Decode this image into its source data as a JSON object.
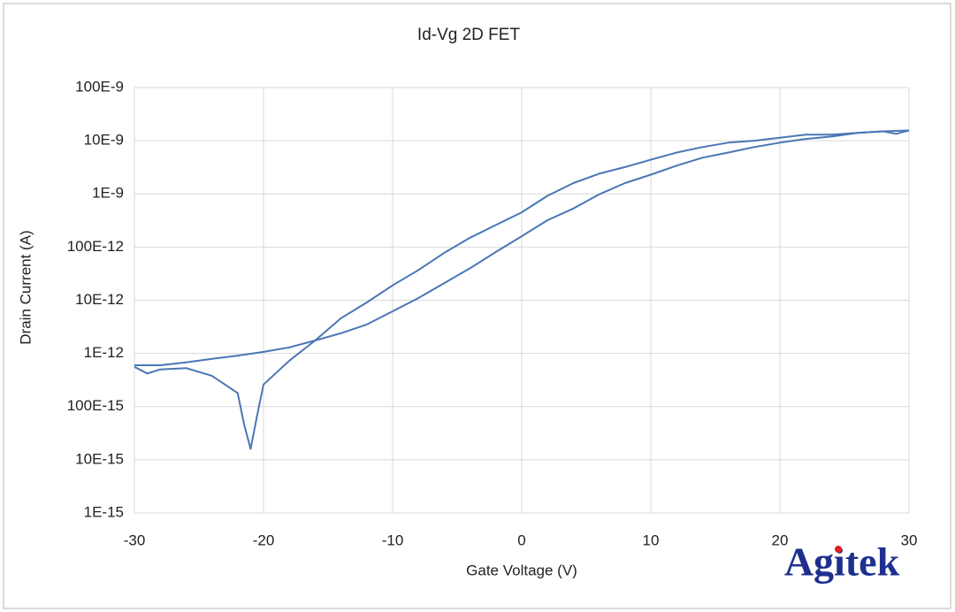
{
  "chart_data": {
    "type": "line",
    "title": "Id-Vg 2D FET",
    "x_label": "Gate Voltage (V)",
    "y_label": "Drain Current (A)",
    "yscale": "log",
    "grid": true,
    "watermark": "Agitek",
    "xlim": [
      -30,
      30
    ],
    "xticks": [
      -30,
      -20,
      -10,
      0,
      10,
      20,
      30
    ],
    "ylim": [
      1e-15,
      1e-07
    ],
    "yticks": [
      {
        "value": 1e-15,
        "label": "1E-15"
      },
      {
        "value": 1e-14,
        "label": "10E-15"
      },
      {
        "value": 1e-13,
        "label": "100E-15"
      },
      {
        "value": 1e-12,
        "label": "1E-12"
      },
      {
        "value": 1e-11,
        "label": "10E-12"
      },
      {
        "value": 1e-10,
        "label": "100E-12"
      },
      {
        "value": 1e-09,
        "label": "1E-9"
      },
      {
        "value": 1e-08,
        "label": "10E-9"
      },
      {
        "value": 1e-07,
        "label": "100E-9"
      }
    ],
    "series": [
      {
        "color": "#4a76b5",
        "x": [
          -30,
          -29,
          -28,
          -26,
          -24,
          -22,
          -21.5,
          -21,
          -20.5,
          -20,
          -18,
          -16,
          -14,
          -12,
          -10,
          -8,
          -6,
          -4,
          -2,
          0,
          2,
          4,
          6,
          8,
          10,
          12,
          14,
          16,
          18,
          20,
          22,
          24,
          26,
          28,
          29,
          30
        ],
        "values": [
          5.6e-13,
          4.2e-13,
          5e-13,
          5.3e-13,
          3.8e-13,
          1.8e-13,
          4.6e-14,
          1.6e-14,
          6.7e-14,
          2.6e-13,
          7.3e-13,
          1.75e-12,
          4.6e-12,
          9.1e-12,
          1.9e-11,
          3.7e-11,
          7.8e-11,
          1.5e-10,
          2.6e-10,
          4.5e-10,
          9.2e-10,
          1.6e-09,
          2.4e-09,
          3.2e-09,
          4.4e-09,
          6e-09,
          7.6e-09,
          9.2e-09,
          1e-08,
          1.14e-08,
          1.3e-08,
          1.3e-08,
          1.4e-08,
          1.5e-08,
          1.35e-08,
          1.56e-08
        ]
      },
      {
        "color": "#4a76b5",
        "x": [
          -30,
          -28,
          -26,
          -24,
          -22,
          -20,
          -18,
          -16,
          -14,
          -12,
          -10,
          -8,
          -6,
          -4,
          -2,
          0,
          2,
          4,
          6,
          8,
          10,
          12,
          14,
          16,
          18,
          20,
          22,
          24,
          26,
          28,
          30
        ],
        "values": [
          6e-13,
          6e-13,
          6.8e-13,
          7.9e-13,
          9.1e-13,
          1.07e-12,
          1.3e-12,
          1.75e-12,
          2.4e-12,
          3.5e-12,
          6.2e-12,
          1.1e-11,
          2.1e-11,
          4e-11,
          8.1e-11,
          1.6e-10,
          3.2e-10,
          5.3e-10,
          9.8e-10,
          1.6e-09,
          2.3e-09,
          3.4e-09,
          4.8e-09,
          6e-09,
          7.6e-09,
          9.2e-09,
          1.08e-08,
          1.2e-08,
          1.4e-08,
          1.5e-08,
          1.56e-08
        ]
      }
    ]
  }
}
